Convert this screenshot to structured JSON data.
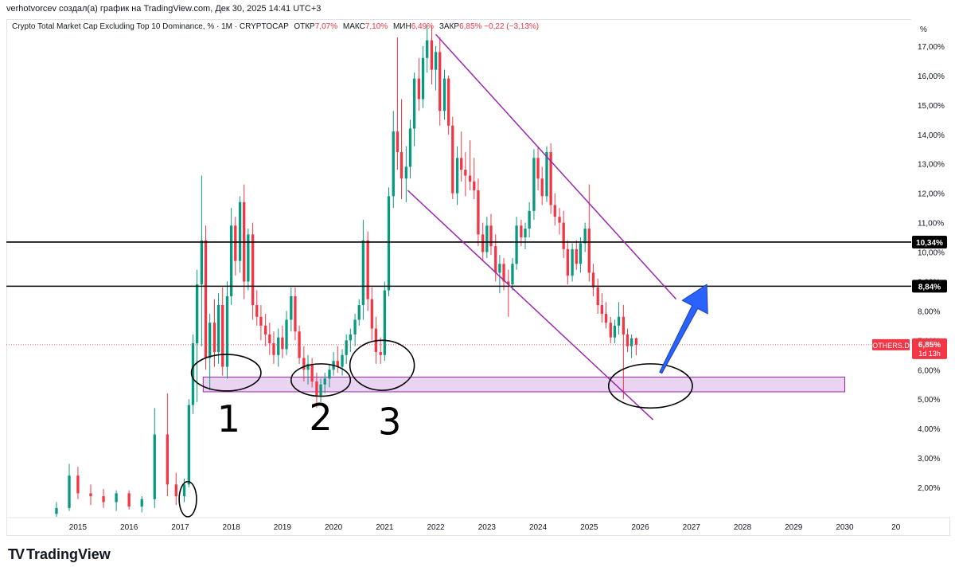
{
  "header": {
    "publisher_line": "verhotvorcev создал(а) график на TradingView.com, Дек 30, 2025 14:41 UTC+3"
  },
  "legend": {
    "symbol_title": "Crypto Total Market Cap Excluding Top 10 Dominance, % · 1М · CRYPTOCAP",
    "open_label": "ОТКР",
    "open_value": "7,07%",
    "high_label": "МАКС",
    "high_value": "7,10%",
    "low_label": "МИН",
    "low_value": "6,49%",
    "close_label": "ЗАКР",
    "close_value": "6,85%",
    "change_value": "−0,22 (−3,13%)"
  },
  "price_axis": {
    "unit": "%",
    "current_symbol": "OTHERS.D",
    "current_value": "6,85%",
    "countdown": "1d 13h",
    "level_1_value": "10,34%",
    "level_2_value": "8,84%"
  },
  "annotations": {
    "touch_1": "1",
    "touch_2": "2",
    "touch_3": "3"
  },
  "branding": {
    "logo_text": "TradingView",
    "logo_mark": "TV"
  },
  "colors": {
    "up": "#089981",
    "down": "#f23645",
    "channel": "#9c27b0",
    "zone_fill": "#e8cdef",
    "zone_border": "#9c27b0",
    "arrow": "#2962ff",
    "level_line": "#000000",
    "current_price": "#f23645"
  },
  "chart_data": {
    "type": "candlestick",
    "symbol": "OTHERS.D",
    "timeframe": "1M",
    "ylim": [
      1.0,
      17.8
    ],
    "y_ticks": [
      {
        "v": 2,
        "label": "2,00%"
      },
      {
        "v": 3,
        "label": "3,00%"
      },
      {
        "v": 4,
        "label": "4,00%"
      },
      {
        "v": 5,
        "label": "5,00%"
      },
      {
        "v": 6,
        "label": "6,00%"
      },
      {
        "v": 7,
        "label": "7,00%"
      },
      {
        "v": 8,
        "label": "8,00%"
      },
      {
        "v": 9,
        "label": "9,00%"
      },
      {
        "v": 10,
        "label": "10,00%"
      },
      {
        "v": 11,
        "label": "11,00%"
      },
      {
        "v": 12,
        "label": "12,00%"
      },
      {
        "v": 13,
        "label": "13,00%"
      },
      {
        "v": 14,
        "label": "14,00%"
      },
      {
        "v": 15,
        "label": "15,00%"
      },
      {
        "v": 16,
        "label": "16,00%"
      },
      {
        "v": 17,
        "label": "17,00%"
      }
    ],
    "x_ticks": [
      "2015",
      "2016",
      "2017",
      "2018",
      "2019",
      "2020",
      "2021",
      "2022",
      "2023",
      "2024",
      "2025",
      "2026",
      "2027",
      "2028",
      "2029",
      "2030",
      "20"
    ],
    "xlim": [
      2013.6,
      2031.3
    ],
    "horizontal_levels": [
      10.34,
      8.84
    ],
    "current_price": 6.85,
    "support_zone": {
      "x": [
        2017.45,
        2030.0
      ],
      "y": [
        5.25,
        5.75
      ]
    },
    "channel_upper": {
      "x": [
        2022.0,
        2026.7
      ],
      "y": [
        17.4,
        8.4
      ]
    },
    "channel_lower": {
      "x": [
        2021.45,
        2026.25
      ],
      "y": [
        12.1,
        4.3
      ]
    },
    "projection_arrow": {
      "x": [
        2026.4,
        2027.3
      ],
      "y": [
        5.9,
        8.9
      ]
    },
    "circled_areas": [
      {
        "x": 2017.9,
        "y": 5.9,
        "rx": 0.68,
        "ry": 0.62
      },
      {
        "x": 2019.75,
        "y": 5.65,
        "rx": 0.58,
        "ry": 0.55
      },
      {
        "x": 2020.95,
        "y": 6.15,
        "rx": 0.63,
        "ry": 0.85
      },
      {
        "x": 2026.2,
        "y": 5.45,
        "rx": 0.82,
        "ry": 0.75
      },
      {
        "x": 2017.15,
        "y": 1.6,
        "rx": 0.17,
        "ry": 0.6
      }
    ],
    "candles": [
      {
        "t": 2014.58,
        "o": 1.1,
        "h": 1.5,
        "l": 1.0,
        "c": 1.3
      },
      {
        "t": 2014.83,
        "o": 1.3,
        "h": 2.8,
        "l": 1.2,
        "c": 2.4
      },
      {
        "t": 2015.0,
        "o": 2.4,
        "h": 2.7,
        "l": 1.6,
        "c": 1.8
      },
      {
        "t": 2015.25,
        "o": 1.8,
        "h": 2.1,
        "l": 1.4,
        "c": 1.7
      },
      {
        "t": 2015.5,
        "o": 1.7,
        "h": 1.95,
        "l": 1.3,
        "c": 1.5
      },
      {
        "t": 2015.75,
        "o": 1.5,
        "h": 1.9,
        "l": 1.2,
        "c": 1.8
      },
      {
        "t": 2016.0,
        "o": 1.8,
        "h": 1.9,
        "l": 1.25,
        "c": 1.35
      },
      {
        "t": 2016.25,
        "o": 1.35,
        "h": 1.7,
        "l": 1.15,
        "c": 1.6
      },
      {
        "t": 2016.5,
        "o": 1.6,
        "h": 4.7,
        "l": 1.3,
        "c": 3.8
      },
      {
        "t": 2016.75,
        "o": 3.8,
        "h": 5.2,
        "l": 1.7,
        "c": 2.1
      },
      {
        "t": 2016.92,
        "o": 2.1,
        "h": 2.5,
        "l": 1.4,
        "c": 1.7
      },
      {
        "t": 2017.08,
        "o": 1.7,
        "h": 2.3,
        "l": 1.5,
        "c": 2.1
      },
      {
        "t": 2017.17,
        "o": 2.1,
        "h": 5.0,
        "l": 2.0,
        "c": 4.8
      },
      {
        "t": 2017.25,
        "o": 4.8,
        "h": 7.2,
        "l": 4.5,
        "c": 6.9
      },
      {
        "t": 2017.33,
        "o": 6.9,
        "h": 9.4,
        "l": 4.9,
        "c": 8.9
      },
      {
        "t": 2017.42,
        "o": 8.9,
        "h": 12.6,
        "l": 6.8,
        "c": 10.4
      },
      {
        "t": 2017.5,
        "o": 10.4,
        "h": 10.9,
        "l": 6.0,
        "c": 6.4
      },
      {
        "t": 2017.58,
        "o": 6.4,
        "h": 7.9,
        "l": 5.3,
        "c": 7.6
      },
      {
        "t": 2017.67,
        "o": 7.6,
        "h": 8.4,
        "l": 6.1,
        "c": 6.6
      },
      {
        "t": 2017.75,
        "o": 6.6,
        "h": 8.6,
        "l": 6.2,
        "c": 8.2
      },
      {
        "t": 2017.83,
        "o": 8.2,
        "h": 8.8,
        "l": 5.8,
        "c": 6.1
      },
      {
        "t": 2017.92,
        "o": 6.1,
        "h": 9.0,
        "l": 5.7,
        "c": 8.5
      },
      {
        "t": 2018.0,
        "o": 8.5,
        "h": 11.5,
        "l": 8.2,
        "c": 10.9
      },
      {
        "t": 2018.08,
        "o": 10.9,
        "h": 11.2,
        "l": 9.2,
        "c": 9.7
      },
      {
        "t": 2018.17,
        "o": 9.7,
        "h": 11.9,
        "l": 9.3,
        "c": 11.7
      },
      {
        "t": 2018.25,
        "o": 11.7,
        "h": 12.3,
        "l": 8.4,
        "c": 9.0
      },
      {
        "t": 2018.33,
        "o": 9.0,
        "h": 10.8,
        "l": 8.7,
        "c": 10.6
      },
      {
        "t": 2018.42,
        "o": 10.6,
        "h": 11.0,
        "l": 7.7,
        "c": 8.2
      },
      {
        "t": 2018.5,
        "o": 8.2,
        "h": 8.7,
        "l": 7.5,
        "c": 7.8
      },
      {
        "t": 2018.58,
        "o": 7.8,
        "h": 8.2,
        "l": 7.0,
        "c": 7.5
      },
      {
        "t": 2018.67,
        "o": 7.5,
        "h": 7.9,
        "l": 6.8,
        "c": 7.2
      },
      {
        "t": 2018.75,
        "o": 7.2,
        "h": 7.6,
        "l": 6.5,
        "c": 6.9
      },
      {
        "t": 2018.83,
        "o": 6.9,
        "h": 7.3,
        "l": 6.2,
        "c": 6.5
      },
      {
        "t": 2018.92,
        "o": 6.5,
        "h": 7.4,
        "l": 6.1,
        "c": 7.1
      },
      {
        "t": 2019.0,
        "o": 7.1,
        "h": 7.5,
        "l": 6.4,
        "c": 6.7
      },
      {
        "t": 2019.08,
        "o": 6.7,
        "h": 8.0,
        "l": 6.5,
        "c": 7.7
      },
      {
        "t": 2019.17,
        "o": 7.7,
        "h": 8.8,
        "l": 7.3,
        "c": 8.5
      },
      {
        "t": 2019.25,
        "o": 8.5,
        "h": 8.8,
        "l": 7.0,
        "c": 7.3
      },
      {
        "t": 2019.33,
        "o": 7.3,
        "h": 7.5,
        "l": 6.2,
        "c": 6.4
      },
      {
        "t": 2019.42,
        "o": 6.4,
        "h": 6.8,
        "l": 5.6,
        "c": 6.0
      },
      {
        "t": 2019.5,
        "o": 6.0,
        "h": 6.5,
        "l": 5.5,
        "c": 6.2
      },
      {
        "t": 2019.58,
        "o": 6.2,
        "h": 6.4,
        "l": 5.4,
        "c": 5.6
      },
      {
        "t": 2019.67,
        "o": 5.6,
        "h": 5.9,
        "l": 4.7,
        "c": 5.1
      },
      {
        "t": 2019.75,
        "o": 5.1,
        "h": 5.7,
        "l": 4.9,
        "c": 5.5
      },
      {
        "t": 2019.83,
        "o": 5.5,
        "h": 5.9,
        "l": 5.2,
        "c": 5.7
      },
      {
        "t": 2019.92,
        "o": 5.7,
        "h": 6.2,
        "l": 5.4,
        "c": 6.0
      },
      {
        "t": 2020.0,
        "o": 6.0,
        "h": 6.6,
        "l": 5.8,
        "c": 6.3
      },
      {
        "t": 2020.08,
        "o": 6.3,
        "h": 6.8,
        "l": 5.9,
        "c": 6.1
      },
      {
        "t": 2020.17,
        "o": 6.1,
        "h": 6.7,
        "l": 5.8,
        "c": 6.5
      },
      {
        "t": 2020.25,
        "o": 6.5,
        "h": 7.2,
        "l": 6.2,
        "c": 7.0
      },
      {
        "t": 2020.33,
        "o": 7.0,
        "h": 7.4,
        "l": 6.6,
        "c": 7.2
      },
      {
        "t": 2020.42,
        "o": 7.2,
        "h": 7.9,
        "l": 6.8,
        "c": 7.7
      },
      {
        "t": 2020.5,
        "o": 7.7,
        "h": 8.4,
        "l": 7.5,
        "c": 8.2
      },
      {
        "t": 2020.58,
        "o": 8.2,
        "h": 11.1,
        "l": 7.7,
        "c": 10.4
      },
      {
        "t": 2020.67,
        "o": 10.4,
        "h": 10.7,
        "l": 8.0,
        "c": 8.4
      },
      {
        "t": 2020.75,
        "o": 8.4,
        "h": 8.8,
        "l": 7.0,
        "c": 7.4
      },
      {
        "t": 2020.83,
        "o": 7.4,
        "h": 7.8,
        "l": 6.2,
        "c": 6.6
      },
      {
        "t": 2020.92,
        "o": 6.6,
        "h": 7.1,
        "l": 6.2,
        "c": 6.5
      },
      {
        "t": 2021.0,
        "o": 6.5,
        "h": 9.0,
        "l": 6.3,
        "c": 8.7
      },
      {
        "t": 2021.08,
        "o": 8.7,
        "h": 12.2,
        "l": 8.5,
        "c": 11.9
      },
      {
        "t": 2021.17,
        "o": 11.9,
        "h": 14.8,
        "l": 11.5,
        "c": 14.1
      },
      {
        "t": 2021.25,
        "o": 14.1,
        "h": 17.3,
        "l": 12.8,
        "c": 13.4
      },
      {
        "t": 2021.33,
        "o": 13.4,
        "h": 15.2,
        "l": 11.8,
        "c": 12.5
      },
      {
        "t": 2021.42,
        "o": 12.5,
        "h": 13.6,
        "l": 11.7,
        "c": 12.9
      },
      {
        "t": 2021.5,
        "o": 12.9,
        "h": 14.5,
        "l": 12.5,
        "c": 14.2
      },
      {
        "t": 2021.58,
        "o": 14.2,
        "h": 16.1,
        "l": 13.6,
        "c": 15.9
      },
      {
        "t": 2021.67,
        "o": 15.9,
        "h": 16.6,
        "l": 14.8,
        "c": 15.2
      },
      {
        "t": 2021.75,
        "o": 15.2,
        "h": 17.0,
        "l": 14.9,
        "c": 16.6
      },
      {
        "t": 2021.83,
        "o": 16.6,
        "h": 17.7,
        "l": 16.1,
        "c": 17.2
      },
      {
        "t": 2021.92,
        "o": 17.2,
        "h": 17.7,
        "l": 15.7,
        "c": 16.2
      },
      {
        "t": 2022.0,
        "o": 16.2,
        "h": 17.0,
        "l": 15.5,
        "c": 16.8
      },
      {
        "t": 2022.08,
        "o": 16.8,
        "h": 17.3,
        "l": 14.3,
        "c": 14.8
      },
      {
        "t": 2022.17,
        "o": 14.8,
        "h": 16.2,
        "l": 14.5,
        "c": 15.9
      },
      {
        "t": 2022.25,
        "o": 15.9,
        "h": 16.0,
        "l": 14.0,
        "c": 14.3
      },
      {
        "t": 2022.33,
        "o": 14.3,
        "h": 14.6,
        "l": 11.8,
        "c": 12.0
      },
      {
        "t": 2022.42,
        "o": 12.0,
        "h": 13.6,
        "l": 11.6,
        "c": 13.2
      },
      {
        "t": 2022.5,
        "o": 13.2,
        "h": 14.1,
        "l": 12.4,
        "c": 12.8
      },
      {
        "t": 2022.58,
        "o": 12.8,
        "h": 13.4,
        "l": 11.9,
        "c": 12.6
      },
      {
        "t": 2022.67,
        "o": 12.6,
        "h": 13.8,
        "l": 12.1,
        "c": 12.4
      },
      {
        "t": 2022.75,
        "o": 12.4,
        "h": 13.2,
        "l": 11.8,
        "c": 12.1
      },
      {
        "t": 2022.83,
        "o": 12.1,
        "h": 12.5,
        "l": 10.2,
        "c": 10.6
      },
      {
        "t": 2022.92,
        "o": 10.6,
        "h": 11.0,
        "l": 9.7,
        "c": 10.0
      },
      {
        "t": 2023.0,
        "o": 10.0,
        "h": 11.2,
        "l": 9.8,
        "c": 10.9
      },
      {
        "t": 2023.08,
        "o": 10.9,
        "h": 11.3,
        "l": 9.9,
        "c": 10.2
      },
      {
        "t": 2023.17,
        "o": 10.2,
        "h": 10.6,
        "l": 9.0,
        "c": 9.3
      },
      {
        "t": 2023.25,
        "o": 9.3,
        "h": 9.9,
        "l": 8.6,
        "c": 9.6
      },
      {
        "t": 2023.33,
        "o": 9.6,
        "h": 9.8,
        "l": 8.7,
        "c": 9.0
      },
      {
        "t": 2023.42,
        "o": 9.0,
        "h": 9.4,
        "l": 7.8,
        "c": 8.9
      },
      {
        "t": 2023.5,
        "o": 8.9,
        "h": 9.8,
        "l": 8.7,
        "c": 9.6
      },
      {
        "t": 2023.58,
        "o": 9.6,
        "h": 11.2,
        "l": 9.4,
        "c": 10.9
      },
      {
        "t": 2023.67,
        "o": 10.9,
        "h": 11.1,
        "l": 10.2,
        "c": 10.5
      },
      {
        "t": 2023.75,
        "o": 10.5,
        "h": 11.0,
        "l": 10.1,
        "c": 10.8
      },
      {
        "t": 2023.83,
        "o": 10.8,
        "h": 11.7,
        "l": 10.5,
        "c": 11.4
      },
      {
        "t": 2023.92,
        "o": 11.4,
        "h": 13.5,
        "l": 11.1,
        "c": 13.2
      },
      {
        "t": 2024.0,
        "o": 13.2,
        "h": 13.6,
        "l": 12.1,
        "c": 12.5
      },
      {
        "t": 2024.08,
        "o": 12.5,
        "h": 12.9,
        "l": 11.6,
        "c": 11.9
      },
      {
        "t": 2024.17,
        "o": 11.9,
        "h": 13.6,
        "l": 11.7,
        "c": 13.4
      },
      {
        "t": 2024.25,
        "o": 13.4,
        "h": 13.7,
        "l": 11.3,
        "c": 11.6
      },
      {
        "t": 2024.33,
        "o": 11.6,
        "h": 12.0,
        "l": 10.9,
        "c": 11.2
      },
      {
        "t": 2024.42,
        "o": 11.2,
        "h": 11.5,
        "l": 10.6,
        "c": 11.0
      },
      {
        "t": 2024.5,
        "o": 11.0,
        "h": 11.4,
        "l": 9.8,
        "c": 10.1
      },
      {
        "t": 2024.58,
        "o": 10.1,
        "h": 10.4,
        "l": 8.9,
        "c": 9.2
      },
      {
        "t": 2024.67,
        "o": 9.2,
        "h": 10.3,
        "l": 9.0,
        "c": 10.1
      },
      {
        "t": 2024.75,
        "o": 10.1,
        "h": 10.4,
        "l": 9.4,
        "c": 9.6
      },
      {
        "t": 2024.83,
        "o": 9.6,
        "h": 10.5,
        "l": 9.3,
        "c": 10.3
      },
      {
        "t": 2024.92,
        "o": 10.3,
        "h": 11.0,
        "l": 10.0,
        "c": 10.8
      },
      {
        "t": 2025.0,
        "o": 10.8,
        "h": 12.3,
        "l": 9.0,
        "c": 9.3
      },
      {
        "t": 2025.08,
        "o": 9.3,
        "h": 9.6,
        "l": 8.5,
        "c": 8.8
      },
      {
        "t": 2025.17,
        "o": 8.8,
        "h": 9.1,
        "l": 7.9,
        "c": 8.2
      },
      {
        "t": 2025.25,
        "o": 8.2,
        "h": 8.6,
        "l": 7.6,
        "c": 7.9
      },
      {
        "t": 2025.33,
        "o": 7.9,
        "h": 8.3,
        "l": 7.4,
        "c": 7.6
      },
      {
        "t": 2025.42,
        "o": 7.6,
        "h": 7.8,
        "l": 6.9,
        "c": 7.1
      },
      {
        "t": 2025.5,
        "o": 7.1,
        "h": 7.7,
        "l": 6.9,
        "c": 7.5
      },
      {
        "t": 2025.58,
        "o": 7.5,
        "h": 8.3,
        "l": 7.2,
        "c": 7.8
      },
      {
        "t": 2025.67,
        "o": 7.8,
        "h": 8.2,
        "l": 5.0,
        "c": 7.2
      },
      {
        "t": 2025.75,
        "o": 7.2,
        "h": 7.4,
        "l": 6.6,
        "c": 6.8
      },
      {
        "t": 2025.83,
        "o": 6.8,
        "h": 7.2,
        "l": 6.4,
        "c": 7.07
      },
      {
        "t": 2025.92,
        "o": 7.07,
        "h": 7.1,
        "l": 6.49,
        "c": 6.85
      }
    ]
  }
}
